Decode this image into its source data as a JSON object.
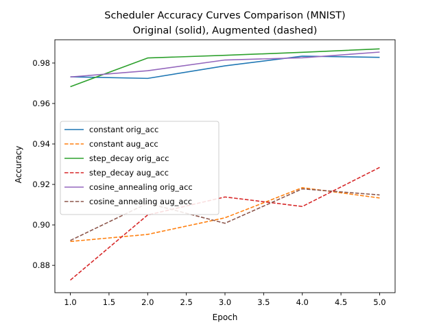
{
  "chart_data": {
    "type": "line",
    "title_line1": "Scheduler Accuracy Curves Comparison (MNIST)",
    "title_line2": "Original (solid), Augmented (dashed)",
    "xlabel": "Epoch",
    "ylabel": "Accuracy",
    "xlim": [
      0.8,
      5.2
    ],
    "ylim": [
      0.8665,
      0.9915
    ],
    "x_ticks": [
      1.0,
      1.5,
      2.0,
      2.5,
      3.0,
      3.5,
      4.0,
      4.5,
      5.0
    ],
    "x_tick_labels": [
      "1.0",
      "1.5",
      "2.0",
      "2.5",
      "3.0",
      "3.5",
      "4.0",
      "4.5",
      "5.0"
    ],
    "y_ticks": [
      0.88,
      0.9,
      0.92,
      0.94,
      0.96,
      0.98
    ],
    "y_tick_labels": [
      "0.88",
      "0.90",
      "0.92",
      "0.94",
      "0.96",
      "0.98"
    ],
    "grid": false,
    "legend_position": "center-left",
    "x": [
      1,
      2,
      3,
      4,
      5
    ],
    "series": [
      {
        "name": "constant orig_acc",
        "color": "#1f77b4",
        "dashed": false,
        "values": [
          0.9732,
          0.9724,
          0.9786,
          0.9834,
          0.9828
        ]
      },
      {
        "name": "constant aug_acc",
        "color": "#ff7f0e",
        "dashed": true,
        "values": [
          0.8918,
          0.8953,
          0.9035,
          0.9184,
          0.9133
        ]
      },
      {
        "name": "step_decay orig_acc",
        "color": "#2ca02c",
        "dashed": false,
        "values": [
          0.9683,
          0.9825,
          0.9838,
          0.9853,
          0.987
        ]
      },
      {
        "name": "step_decay aug_acc",
        "color": "#d62728",
        "dashed": true,
        "values": [
          0.8727,
          0.9049,
          0.9138,
          0.9091,
          0.9284
        ]
      },
      {
        "name": "cosine_annealing orig_acc",
        "color": "#9467bd",
        "dashed": false,
        "values": [
          0.9731,
          0.9762,
          0.9815,
          0.9826,
          0.9854
        ]
      },
      {
        "name": "cosine_annealing aug_acc",
        "color": "#8c564b",
        "dashed": true,
        "values": [
          0.8923,
          0.9107,
          0.9008,
          0.9178,
          0.9148
        ]
      }
    ]
  }
}
